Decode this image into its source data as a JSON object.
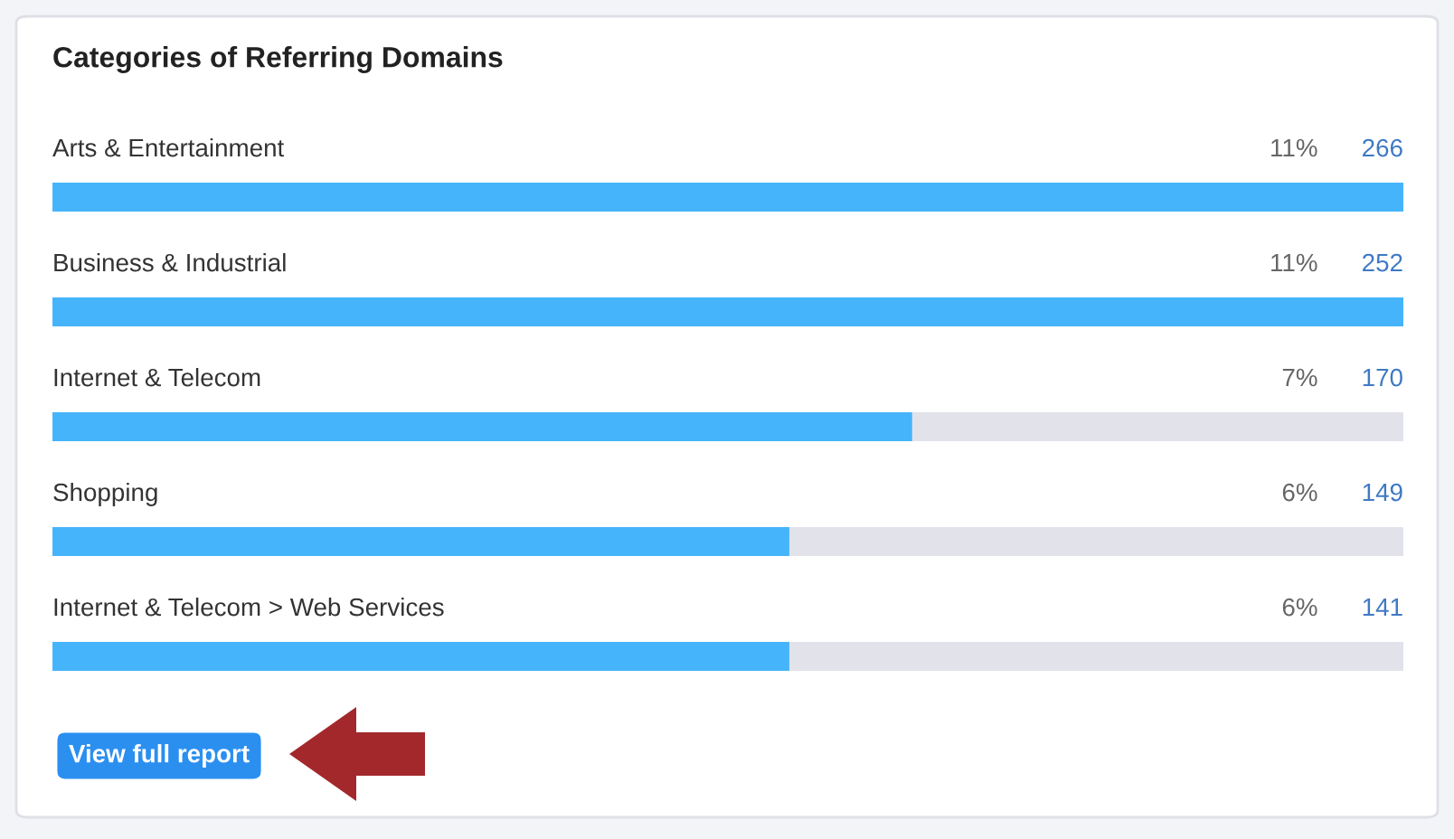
{
  "chart_data": {
    "type": "bar",
    "orientation": "horizontal",
    "title": "Categories of Referring Domains",
    "categories": [
      "Arts & Entertainment",
      "Business & Industrial",
      "Internet & Telecom",
      "Shopping",
      "Internet & Telecom > Web Services"
    ],
    "values": [
      11,
      11,
      7,
      6,
      6
    ],
    "color": "#45b4fb",
    "value_labels": [
      "11%",
      "11%",
      "7%",
      "6%",
      "6%"
    ],
    "xlim": [
      0,
      11
    ],
    "tick_labels": false,
    "annotations": [
      "266",
      "252",
      "170",
      "149",
      "141",
      "View full report"
    ]
  }
}
